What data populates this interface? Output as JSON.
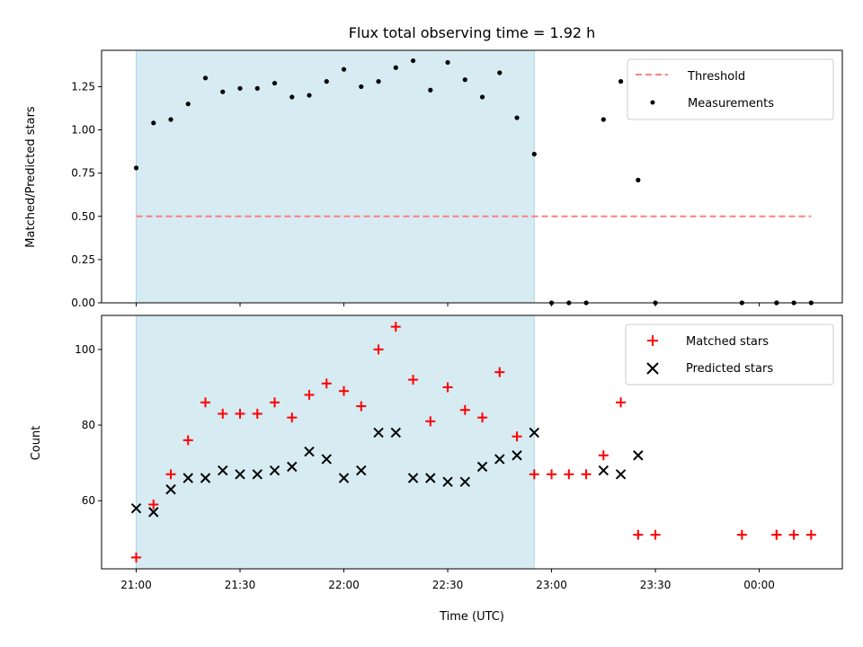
{
  "chart_data": [
    {
      "type": "scatter",
      "title": "Flux total observing time = 1.92 h",
      "ylabel": "Matched/Predicted stars",
      "xlabel": "",
      "ylim": [
        0,
        1.46
      ],
      "xlim": [
        "20:50",
        "00:24"
      ],
      "ytick_labels": [
        "0.00",
        "0.25",
        "0.50",
        "0.75",
        "1.00",
        "1.25"
      ],
      "yticks": [
        0,
        0.25,
        0.5,
        0.75,
        1.0,
        1.25
      ],
      "shaded_span": [
        "21:00",
        "22:55"
      ],
      "threshold": {
        "name": "Threshold",
        "y": 0.5,
        "x_range": [
          "21:00",
          "00:15"
        ],
        "color": "#ff7f7f"
      },
      "series": [
        {
          "name": "Measurements",
          "color": "#000000",
          "x": [
            "21:00",
            "21:05",
            "21:10",
            "21:15",
            "21:20",
            "21:25",
            "21:30",
            "21:35",
            "21:40",
            "21:45",
            "21:50",
            "21:55",
            "22:00",
            "22:05",
            "22:10",
            "22:15",
            "22:20",
            "22:25",
            "22:30",
            "22:35",
            "22:40",
            "22:45",
            "22:50",
            "22:55",
            "23:00",
            "23:05",
            "23:10",
            "23:15",
            "23:20",
            "23:25",
            "23:30",
            "23:55",
            "00:05",
            "00:05",
            "00:10",
            "00:15"
          ],
          "y": [
            0.78,
            1.04,
            1.06,
            1.15,
            1.3,
            1.22,
            1.24,
            1.24,
            1.27,
            1.19,
            1.2,
            1.28,
            1.35,
            1.25,
            1.28,
            1.36,
            1.4,
            1.23,
            1.39,
            1.29,
            1.19,
            1.33,
            1.07,
            0.86,
            0,
            0,
            0,
            1.06,
            1.28,
            0.71,
            0,
            0,
            0,
            0,
            0,
            0
          ]
        }
      ],
      "legend": [
        "Threshold",
        "Measurements"
      ],
      "legend_position": "top-right",
      "grid": false
    },
    {
      "type": "scatter",
      "title": "",
      "xlabel": "Time (UTC)",
      "ylabel": "Count",
      "ylim": [
        42,
        109
      ],
      "xlim": [
        "20:50",
        "00:24"
      ],
      "xtick_labels": [
        "21:00",
        "21:30",
        "22:00",
        "22:30",
        "23:00",
        "23:30",
        "00:00"
      ],
      "ytick_labels": [
        "60",
        "80",
        "100"
      ],
      "yticks": [
        60,
        80,
        100
      ],
      "shaded_span": [
        "21:00",
        "22:55"
      ],
      "series": [
        {
          "name": "Matched stars",
          "marker": "plus",
          "color": "#ff0000",
          "x": [
            "21:00",
            "21:05",
            "21:10",
            "21:15",
            "21:20",
            "21:25",
            "21:30",
            "21:35",
            "21:40",
            "21:45",
            "21:50",
            "21:55",
            "22:00",
            "22:05",
            "22:10",
            "22:15",
            "22:20",
            "22:25",
            "22:30",
            "22:35",
            "22:40",
            "22:45",
            "22:50",
            "22:55",
            "23:00",
            "23:05",
            "23:10",
            "23:15",
            "23:20",
            "23:25",
            "23:30",
            "23:55",
            "00:05",
            "00:05",
            "00:10",
            "00:15"
          ],
          "y": [
            45,
            59,
            67,
            76,
            86,
            83,
            83,
            83,
            86,
            82,
            88,
            91,
            89,
            85,
            100,
            106,
            92,
            81,
            90,
            84,
            82,
            94,
            77,
            67,
            67,
            67,
            67,
            72,
            86,
            51,
            51,
            51,
            51,
            51,
            51,
            51
          ]
        },
        {
          "name": "Predicted stars",
          "marker": "x",
          "color": "#000000",
          "x": [
            "21:00",
            "21:05",
            "21:10",
            "21:15",
            "21:20",
            "21:25",
            "21:30",
            "21:35",
            "21:40",
            "21:45",
            "21:50",
            "21:55",
            "22:00",
            "22:05",
            "22:10",
            "22:15",
            "22:20",
            "22:25",
            "22:30",
            "22:35",
            "22:40",
            "22:45",
            "22:50",
            "22:55",
            "23:15",
            "23:20",
            "23:25"
          ],
          "y": [
            58,
            57,
            63,
            66,
            66,
            68,
            67,
            67,
            68,
            69,
            73,
            71,
            66,
            68,
            78,
            78,
            66,
            66,
            65,
            65,
            69,
            71,
            72,
            78,
            68,
            67,
            72
          ]
        }
      ],
      "legend": [
        "Matched stars",
        "Predicted stars"
      ],
      "legend_position": "top-right",
      "grid": false
    }
  ]
}
